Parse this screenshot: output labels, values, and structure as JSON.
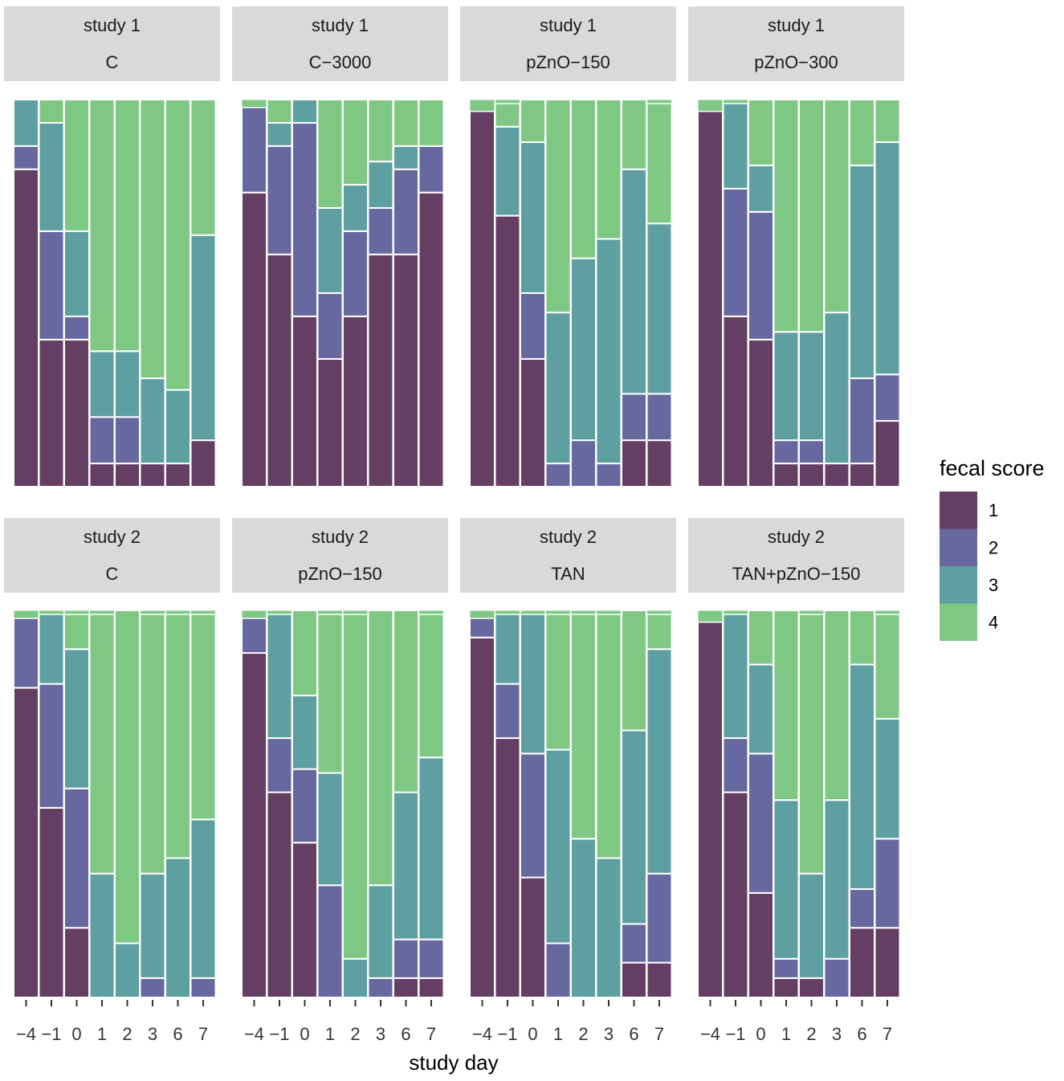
{
  "chart_data": {
    "type": "mosaic",
    "xlabel": "study day",
    "legend_title": "fecal score",
    "legend_position": "right",
    "categories": [
      "−4",
      "−1",
      "0",
      "1",
      "2",
      "3",
      "6",
      "7"
    ],
    "scores": [
      "1",
      "2",
      "3",
      "4"
    ],
    "colors": {
      "1": "#643F63",
      "2": "#67689F",
      "3": "#5E9FA1",
      "4": "#7EC884"
    },
    "panels": [
      {
        "study": "study 1",
        "group": "C",
        "stacks": [
          [
            0.82,
            0.06,
            0.12,
            0.0
          ],
          [
            0.38,
            0.28,
            0.28,
            0.06
          ],
          [
            0.38,
            0.06,
            0.22,
            0.34
          ],
          [
            0.06,
            0.12,
            0.17,
            0.65
          ],
          [
            0.06,
            0.12,
            0.17,
            0.65
          ],
          [
            0.06,
            0.0,
            0.22,
            0.72
          ],
          [
            0.06,
            0.0,
            0.19,
            0.75
          ],
          [
            0.12,
            0.0,
            0.53,
            0.35
          ]
        ]
      },
      {
        "study": "study 1",
        "group": "C−3000",
        "stacks": [
          [
            0.76,
            0.22,
            0.0,
            0.0
          ],
          [
            0.6,
            0.28,
            0.06,
            0.06
          ],
          [
            0.44,
            0.5,
            0.06,
            0.0
          ],
          [
            0.33,
            0.17,
            0.22,
            0.28
          ],
          [
            0.44,
            0.22,
            0.12,
            0.22
          ],
          [
            0.6,
            0.12,
            0.12,
            0.16
          ],
          [
            0.6,
            0.22,
            0.06,
            0.12
          ],
          [
            0.76,
            0.12,
            0.0,
            0.12
          ]
        ]
      },
      {
        "study": "study 1",
        "group": "pZnO−150",
        "stacks": [
          [
            0.97,
            0.0,
            0.0,
            0.0
          ],
          [
            0.7,
            0.0,
            0.23,
            0.06
          ],
          [
            0.33,
            0.17,
            0.39,
            0.11
          ],
          [
            0.0,
            0.06,
            0.39,
            0.55
          ],
          [
            0.0,
            0.12,
            0.47,
            0.41
          ],
          [
            0.0,
            0.06,
            0.58,
            0.36
          ],
          [
            0.12,
            0.12,
            0.58,
            0.18
          ],
          [
            0.12,
            0.12,
            0.44,
            0.31
          ]
        ]
      },
      {
        "study": "study 1",
        "group": "pZnO−300",
        "stacks": [
          [
            0.97,
            0.0,
            0.0,
            0.0
          ],
          [
            0.44,
            0.33,
            0.22,
            0.0
          ],
          [
            0.38,
            0.33,
            0.12,
            0.17
          ],
          [
            0.06,
            0.06,
            0.28,
            0.6
          ],
          [
            0.06,
            0.06,
            0.28,
            0.6
          ],
          [
            0.06,
            0.0,
            0.39,
            0.55
          ],
          [
            0.06,
            0.22,
            0.55,
            0.17
          ],
          [
            0.17,
            0.12,
            0.6,
            0.11
          ]
        ]
      },
      {
        "study": "study 2",
        "group": "C",
        "stacks": [
          [
            0.8,
            0.18,
            0.0,
            0.0
          ],
          [
            0.49,
            0.32,
            0.18,
            0.0
          ],
          [
            0.18,
            0.36,
            0.36,
            0.09
          ],
          [
            0.0,
            0.0,
            0.32,
            0.67
          ],
          [
            0.0,
            0.0,
            0.14,
            0.86
          ],
          [
            0.0,
            0.05,
            0.27,
            0.67
          ],
          [
            0.0,
            0.0,
            0.36,
            0.63
          ],
          [
            0.0,
            0.05,
            0.41,
            0.53
          ]
        ]
      },
      {
        "study": "study 2",
        "group": "pZnO−150",
        "stacks": [
          [
            0.89,
            0.09,
            0.0,
            0.0
          ],
          [
            0.53,
            0.14,
            0.32,
            0.0
          ],
          [
            0.4,
            0.19,
            0.19,
            0.22
          ],
          [
            0.0,
            0.29,
            0.29,
            0.41
          ],
          [
            0.0,
            0.0,
            0.1,
            0.89
          ],
          [
            0.0,
            0.05,
            0.24,
            0.71
          ],
          [
            0.05,
            0.1,
            0.38,
            0.47
          ],
          [
            0.05,
            0.1,
            0.47,
            0.37
          ]
        ]
      },
      {
        "study": "study 2",
        "group": "TAN",
        "stacks": [
          [
            0.93,
            0.05,
            0.0,
            0.0
          ],
          [
            0.67,
            0.14,
            0.18,
            0.0
          ],
          [
            0.31,
            0.32,
            0.36,
            0.0
          ],
          [
            0.0,
            0.14,
            0.5,
            0.35
          ],
          [
            0.0,
            0.0,
            0.41,
            0.58
          ],
          [
            0.0,
            0.0,
            0.36,
            0.63
          ],
          [
            0.09,
            0.1,
            0.5,
            0.31
          ],
          [
            0.09,
            0.23,
            0.58,
            0.09
          ]
        ]
      },
      {
        "study": "study 2",
        "group": "TAN+pZnO−150",
        "stacks": [
          [
            0.97,
            0.0,
            0.0,
            0.0
          ],
          [
            0.53,
            0.14,
            0.32,
            0.0
          ],
          [
            0.27,
            0.36,
            0.23,
            0.14
          ],
          [
            0.05,
            0.05,
            0.41,
            0.49
          ],
          [
            0.05,
            0.0,
            0.27,
            0.67
          ],
          [
            0.0,
            0.1,
            0.41,
            0.49
          ],
          [
            0.18,
            0.1,
            0.58,
            0.14
          ],
          [
            0.18,
            0.23,
            0.31,
            0.27
          ]
        ]
      }
    ]
  }
}
